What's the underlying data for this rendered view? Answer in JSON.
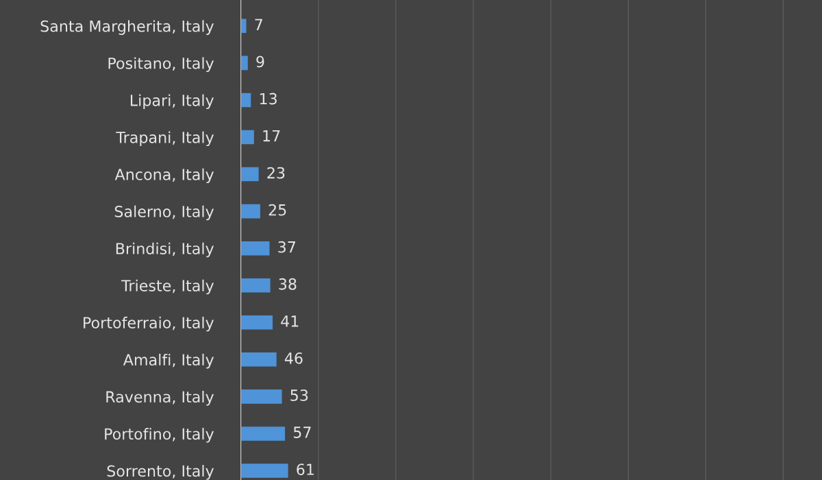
{
  "chart_data": {
    "type": "bar",
    "orientation": "horizontal",
    "categories": [
      "Santa Margherita, Italy",
      "Positano, Italy",
      "Lipari, Italy",
      "Trapani, Italy",
      "Ancona, Italy",
      "Salerno, Italy",
      "Brindisi, Italy",
      "Trieste, Italy",
      "Portoferraio, Italy",
      "Amalfi, Italy",
      "Ravenna, Italy",
      "Portofino, Italy",
      "Sorrento, Italy"
    ],
    "values": [
      7,
      9,
      13,
      17,
      23,
      25,
      37,
      38,
      41,
      46,
      53,
      57,
      61
    ],
    "color": "#4f93d8",
    "data_labels": true,
    "xlim": [
      0,
      750
    ],
    "xticks": [
      {
        "value": 0,
        "label": null
      },
      {
        "value": 100,
        "label": null
      },
      {
        "value": 200,
        "label": null
      },
      {
        "value": 300,
        "label": null
      },
      {
        "value": 400,
        "label": null
      },
      {
        "value": 500,
        "label": null
      },
      {
        "value": 600,
        "label": null
      },
      {
        "value": 700,
        "label": null
      }
    ],
    "tick_labels": "y",
    "grid": "x"
  }
}
